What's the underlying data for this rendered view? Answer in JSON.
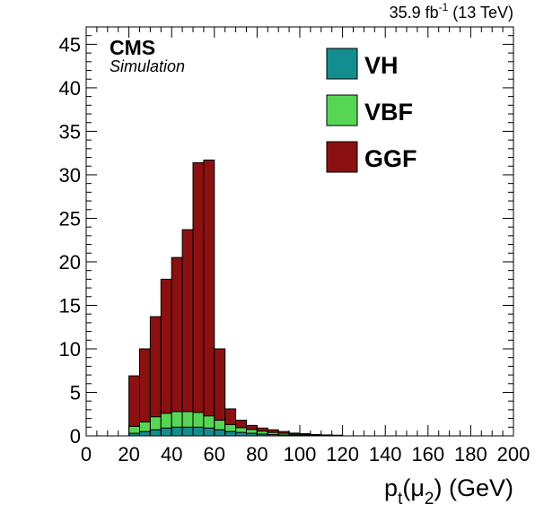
{
  "header": {
    "lumi_value": "35.9 fb",
    "lumi_exp": "-1",
    "lumi_energy": " (13 TeV)",
    "experiment": "CMS",
    "subtitle": "Simulation"
  },
  "x_axis_title": {
    "main": "p",
    "sub1": "t",
    "paren_open": "(",
    "mu": "μ",
    "sub2": "2",
    "paren_close": ")",
    "unit": " (GeV)"
  },
  "chart_data": {
    "type": "bar",
    "stacked": true,
    "bin_width": 5,
    "bin_edges_start": [
      20,
      25,
      30,
      35,
      40,
      45,
      50,
      55,
      60,
      65,
      70,
      75,
      80,
      85,
      90,
      95,
      100,
      105,
      110,
      115
    ],
    "series": [
      {
        "name": "VH",
        "color": "#138d90",
        "values": [
          0.3,
          0.5,
          0.7,
          0.9,
          1.0,
          1.0,
          1.0,
          0.9,
          0.7,
          0.5,
          0.4,
          0.3,
          0.2,
          0.15,
          0.1,
          0.08,
          0.05,
          0.04,
          0.03,
          0.02
        ]
      },
      {
        "name": "VBF",
        "color": "#57d655",
        "values": [
          0.8,
          1.1,
          1.5,
          1.7,
          1.8,
          1.8,
          1.7,
          1.4,
          1.1,
          0.8,
          0.55,
          0.45,
          0.35,
          0.25,
          0.2,
          0.12,
          0.1,
          0.06,
          0.04,
          0.03
        ]
      },
      {
        "name": "GGF",
        "color": "#8b1111",
        "values": [
          5.8,
          8.4,
          11.5,
          15.4,
          17.7,
          20.9,
          28.7,
          29.4,
          8.2,
          1.8,
          0.85,
          0.45,
          0.35,
          0.3,
          0.2,
          0.12,
          0.1,
          0.06,
          0.04,
          0.03
        ]
      }
    ],
    "legend_order": [
      "VH",
      "VBF",
      "GGF"
    ],
    "legend_position": "top-right",
    "xlim": [
      0,
      200
    ],
    "ylim": [
      0,
      47
    ],
    "x_ticks": [
      0,
      20,
      40,
      60,
      80,
      100,
      120,
      140,
      160,
      180,
      200
    ],
    "y_ticks": [
      0,
      5,
      10,
      15,
      20,
      25,
      30,
      35,
      40,
      45
    ],
    "grid": false
  }
}
